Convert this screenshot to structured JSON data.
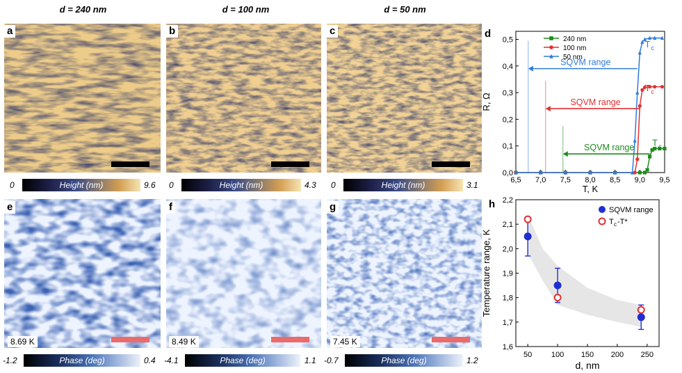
{
  "columns": [
    {
      "title": "d = 240 nm"
    },
    {
      "title": "d = 100 nm"
    },
    {
      "title": "d = 50 nm"
    }
  ],
  "panels": {
    "a": "a",
    "b": "b",
    "c": "c",
    "d": "d",
    "e": "e",
    "f": "f",
    "g": "g",
    "h": "h"
  },
  "height_bars": [
    {
      "min": "0",
      "label": "Height (nm)",
      "max": "9.6"
    },
    {
      "min": "0",
      "label": "Height (nm)",
      "max": "4.3"
    },
    {
      "min": "0",
      "label": "Height (nm)",
      "max": "3.1"
    }
  ],
  "phase_bars": [
    {
      "min": "-1.2",
      "label": "Phase (deg)",
      "max": "0.4"
    },
    {
      "min": "-4.1",
      "label": "Phase (deg)",
      "max": "1.1"
    },
    {
      "min": "-0.7",
      "label": "Phase (deg)",
      "max": "1.2"
    }
  ],
  "temperatures": [
    "8.69 K",
    "8.49 K",
    "7.45 K"
  ],
  "colors": {
    "scale_bar_height": "#000000",
    "scale_bar_phase": "#e96b6b",
    "s240": "#1e8c1e",
    "s100": "#e03131",
    "s50": "#2f7bd8",
    "shade": "#e6e6e6"
  },
  "chart_data": [
    {
      "type": "line",
      "panel": "d",
      "xlabel": "T, K",
      "ylabel": "R, Ω",
      "xlim": [
        6.5,
        9.5
      ],
      "ylim": [
        0,
        0.53
      ],
      "xticks": [
        "6,5",
        "7,0",
        "7,5",
        "8,0",
        "8,5",
        "9,0",
        "9,5"
      ],
      "yticks": [
        "0,0",
        "0,1",
        "0,2",
        "0,3",
        "0,4",
        "0,5"
      ],
      "legend_position": "top-left",
      "series": [
        {
          "name": "240 nm",
          "marker": "square",
          "color": "#1e8c1e",
          "x": [
            6.5,
            7.0,
            7.5,
            8.0,
            8.5,
            9.0,
            9.1,
            9.15,
            9.2,
            9.25,
            9.3,
            9.4,
            9.5
          ],
          "y": [
            0.0,
            0.0,
            0.0,
            0.0,
            0.0,
            0.0,
            0.0,
            0.01,
            0.06,
            0.085,
            0.09,
            0.09,
            0.09
          ]
        },
        {
          "name": "100 nm",
          "marker": "circle",
          "color": "#e03131",
          "x": [
            6.5,
            7.0,
            7.5,
            8.0,
            8.5,
            8.9,
            8.95,
            9.0,
            9.05,
            9.1,
            9.2,
            9.3,
            9.45
          ],
          "y": [
            0.0,
            0.0,
            0.0,
            0.0,
            0.0,
            0.0,
            0.05,
            0.25,
            0.31,
            0.32,
            0.322,
            0.322,
            0.322
          ]
        },
        {
          "name": "50 nm",
          "marker": "triangle",
          "color": "#2f7bd8",
          "x": [
            6.5,
            7.0,
            7.5,
            8.0,
            8.5,
            8.85,
            8.9,
            8.95,
            9.0,
            9.05,
            9.1,
            9.2,
            9.3,
            9.45
          ],
          "y": [
            0.0,
            0.0,
            0.0,
            0.0,
            0.0,
            0.0,
            0.12,
            0.3,
            0.45,
            0.49,
            0.5,
            0.505,
            0.505,
            0.505
          ]
        }
      ],
      "annotations": [
        {
          "text": "SQVM range",
          "color": "#2f7bd8",
          "x_from": 8.95,
          "x_to": 6.75,
          "y": 0.39
        },
        {
          "text": "SQVM range",
          "color": "#e03131",
          "x_from": 9.0,
          "x_to": 7.1,
          "y": 0.24
        },
        {
          "text": "SQVM range",
          "color": "#1e8c1e",
          "x_from": 9.2,
          "x_to": 7.45,
          "y": 0.07
        }
      ],
      "tc_labels": [
        {
          "text": "T",
          "sub": "c",
          "color": "#2f7bd8",
          "x": 9.1,
          "y": 0.47
        },
        {
          "text": "T",
          "sub": "c",
          "color": "#e03131",
          "x": 9.1,
          "y": 0.305
        },
        {
          "text": "T",
          "sub": "c",
          "color": "#1e8c1e",
          "x": 9.25,
          "y": 0.1
        }
      ]
    },
    {
      "type": "scatter",
      "panel": "h",
      "xlabel": "d, nm",
      "ylabel": "Temperature range, K",
      "xlim": [
        30,
        270
      ],
      "ylim": [
        1.6,
        2.2
      ],
      "xticks": [
        "50",
        "100",
        "150",
        "200",
        "250"
      ],
      "yticks": [
        "1,6",
        "1,7",
        "1,8",
        "1,9",
        "2,0",
        "2,1",
        "2,2"
      ],
      "legend_position": "top-right",
      "series": [
        {
          "name": "SQVM range",
          "marker": "filled-circle",
          "color": "#1f2fd1",
          "x": [
            50,
            100,
            240
          ],
          "y": [
            2.05,
            1.85,
            1.72
          ],
          "err": [
            0.08,
            0.07,
            0.05
          ]
        },
        {
          "name": "T",
          "name_sub": "c",
          "name_suffix": "-T*",
          "marker": "open-circle",
          "color": "#e03131",
          "x": [
            50,
            100,
            240
          ],
          "y": [
            2.12,
            1.8,
            1.75
          ]
        }
      ]
    }
  ]
}
